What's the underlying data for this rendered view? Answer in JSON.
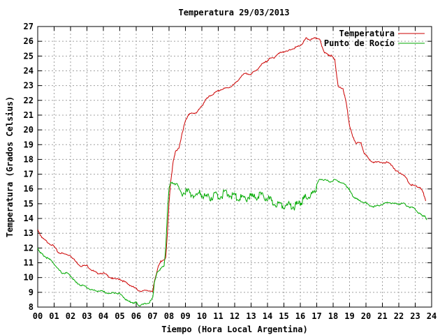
{
  "chart_data": {
    "type": "line",
    "title": "Temperatura 29/03/2013",
    "xlabel": "Tiempo (Hora Local Argentina)",
    "ylabel": "Temperatura (Grados Celsius)",
    "xlim": [
      0,
      24
    ],
    "ylim": [
      8,
      27
    ],
    "x_tick_labels": [
      "00",
      "01",
      "02",
      "03",
      "04",
      "05",
      "06",
      "07",
      "08",
      "09",
      "10",
      "11",
      "12",
      "13",
      "14",
      "15",
      "16",
      "17",
      "18",
      "19",
      "20",
      "21",
      "22",
      "23",
      "24"
    ],
    "y_tick_labels": [
      "8",
      "9",
      "10",
      "11",
      "12",
      "13",
      "14",
      "15",
      "16",
      "17",
      "18",
      "19",
      "20",
      "21",
      "22",
      "23",
      "24",
      "25",
      "26",
      "27"
    ],
    "grid": true,
    "legend_position": "top-right",
    "series": [
      {
        "name": "Temperatura",
        "color": "#cc0000",
        "points": [
          [
            0.0,
            13.2
          ],
          [
            0.15,
            12.9
          ],
          [
            0.35,
            12.6
          ],
          [
            0.6,
            12.4
          ],
          [
            1.0,
            12.1
          ],
          [
            1.25,
            11.7
          ],
          [
            1.6,
            11.6
          ],
          [
            2.0,
            11.5
          ],
          [
            2.3,
            11.1
          ],
          [
            2.6,
            10.8
          ],
          [
            3.0,
            10.8
          ],
          [
            3.3,
            10.5
          ],
          [
            3.6,
            10.3
          ],
          [
            4.0,
            10.3
          ],
          [
            4.3,
            10.1
          ],
          [
            4.6,
            9.9
          ],
          [
            5.0,
            9.9
          ],
          [
            5.3,
            9.7
          ],
          [
            5.6,
            9.5
          ],
          [
            5.9,
            9.3
          ],
          [
            6.2,
            9.1
          ],
          [
            6.6,
            9.1
          ],
          [
            7.0,
            9.1
          ],
          [
            7.15,
            9.9
          ],
          [
            7.3,
            10.6
          ],
          [
            7.5,
            11.1
          ],
          [
            7.8,
            11.3
          ],
          [
            7.9,
            13.0
          ],
          [
            8.0,
            15.0
          ],
          [
            8.1,
            16.5
          ],
          [
            8.25,
            17.8
          ],
          [
            8.4,
            18.6
          ],
          [
            8.6,
            18.7
          ],
          [
            8.8,
            19.8
          ],
          [
            9.0,
            20.6
          ],
          [
            9.2,
            21.1
          ],
          [
            9.5,
            21.1
          ],
          [
            9.7,
            21.2
          ],
          [
            10.0,
            21.6
          ],
          [
            10.2,
            22.0
          ],
          [
            10.5,
            22.3
          ],
          [
            10.8,
            22.5
          ],
          [
            11.1,
            22.7
          ],
          [
            11.4,
            22.8
          ],
          [
            11.7,
            22.9
          ],
          [
            12.0,
            23.1
          ],
          [
            12.3,
            23.5
          ],
          [
            12.6,
            23.8
          ],
          [
            13.0,
            23.8
          ],
          [
            13.3,
            24.0
          ],
          [
            13.6,
            24.4
          ],
          [
            13.9,
            24.6
          ],
          [
            14.1,
            24.8
          ],
          [
            14.4,
            24.9
          ],
          [
            14.6,
            25.1
          ],
          [
            14.9,
            25.3
          ],
          [
            15.2,
            25.3
          ],
          [
            15.5,
            25.5
          ],
          [
            15.8,
            25.6
          ],
          [
            16.1,
            25.8
          ],
          [
            16.35,
            26.2
          ],
          [
            16.6,
            26.1
          ],
          [
            16.9,
            26.2
          ],
          [
            17.15,
            26.2
          ],
          [
            17.3,
            25.7
          ],
          [
            17.5,
            25.2
          ],
          [
            17.7,
            25.1
          ],
          [
            17.9,
            25.0
          ],
          [
            18.1,
            24.8
          ],
          [
            18.3,
            22.9
          ],
          [
            18.6,
            22.8
          ],
          [
            18.8,
            21.8
          ],
          [
            19.0,
            20.3
          ],
          [
            19.2,
            19.5
          ],
          [
            19.4,
            19.1
          ],
          [
            19.7,
            19.1
          ],
          [
            19.9,
            18.4
          ],
          [
            20.2,
            18.0
          ],
          [
            20.5,
            17.8
          ],
          [
            20.9,
            17.8
          ],
          [
            21.3,
            17.8
          ],
          [
            21.6,
            17.6
          ],
          [
            21.8,
            17.2
          ],
          [
            22.1,
            17.1
          ],
          [
            22.4,
            16.8
          ],
          [
            22.7,
            16.3
          ],
          [
            23.0,
            16.2
          ],
          [
            23.3,
            16.1
          ],
          [
            23.5,
            15.7
          ],
          [
            23.65,
            15.2
          ]
        ]
      },
      {
        "name": "Punto de Rocío",
        "color": "#00aa00",
        "points": [
          [
            0.0,
            12.0
          ],
          [
            0.15,
            11.7
          ],
          [
            0.35,
            11.5
          ],
          [
            0.6,
            11.3
          ],
          [
            0.9,
            11.1
          ],
          [
            1.2,
            10.6
          ],
          [
            1.5,
            10.3
          ],
          [
            1.8,
            10.3
          ],
          [
            2.1,
            10.0
          ],
          [
            2.3,
            9.7
          ],
          [
            2.6,
            9.5
          ],
          [
            2.9,
            9.4
          ],
          [
            3.2,
            9.2
          ],
          [
            3.5,
            9.1
          ],
          [
            3.8,
            9.1
          ],
          [
            4.1,
            9.0
          ],
          [
            4.4,
            8.9
          ],
          [
            4.7,
            9.0
          ],
          [
            5.0,
            8.9
          ],
          [
            5.3,
            8.6
          ],
          [
            5.5,
            8.4
          ],
          [
            5.8,
            8.3
          ],
          [
            6.0,
            8.3
          ],
          [
            6.2,
            8.1
          ],
          [
            6.5,
            8.2
          ],
          [
            6.8,
            8.3
          ],
          [
            7.0,
            8.6
          ],
          [
            7.1,
            9.6
          ],
          [
            7.3,
            10.4
          ],
          [
            7.5,
            10.6
          ],
          [
            7.7,
            10.8
          ],
          [
            7.8,
            12.0
          ],
          [
            7.9,
            14.5
          ],
          [
            8.0,
            16.0
          ],
          [
            8.1,
            16.5
          ],
          [
            8.3,
            16.3
          ],
          [
            8.5,
            16.4
          ],
          [
            8.7,
            15.7
          ],
          [
            9.0,
            15.8
          ],
          [
            9.3,
            15.7
          ],
          [
            9.6,
            15.5
          ],
          [
            9.9,
            15.7
          ],
          [
            10.2,
            15.5
          ],
          [
            10.5,
            15.4
          ],
          [
            10.8,
            15.6
          ],
          [
            11.1,
            15.5
          ],
          [
            11.4,
            15.7
          ],
          [
            11.7,
            15.6
          ],
          [
            12.0,
            15.5
          ],
          [
            12.3,
            15.4
          ],
          [
            12.6,
            15.3
          ],
          [
            12.9,
            15.5
          ],
          [
            13.2,
            15.4
          ],
          [
            13.5,
            15.6
          ],
          [
            13.8,
            15.4
          ],
          [
            14.1,
            15.3
          ],
          [
            14.4,
            15.0
          ],
          [
            14.7,
            15.0
          ],
          [
            15.0,
            14.9
          ],
          [
            15.3,
            14.9
          ],
          [
            15.6,
            14.8
          ],
          [
            15.9,
            15.0
          ],
          [
            16.1,
            15.2
          ],
          [
            16.3,
            15.4
          ],
          [
            16.6,
            15.5
          ],
          [
            16.9,
            15.7
          ],
          [
            17.0,
            16.3
          ],
          [
            17.2,
            16.7
          ],
          [
            17.5,
            16.6
          ],
          [
            17.8,
            16.5
          ],
          [
            18.1,
            16.6
          ],
          [
            18.4,
            16.5
          ],
          [
            18.7,
            16.3
          ],
          [
            18.9,
            16.1
          ],
          [
            19.1,
            15.7
          ],
          [
            19.3,
            15.4
          ],
          [
            19.6,
            15.2
          ],
          [
            19.9,
            15.1
          ],
          [
            20.2,
            14.9
          ],
          [
            20.5,
            14.8
          ],
          [
            20.8,
            14.9
          ],
          [
            21.1,
            15.0
          ],
          [
            21.4,
            15.1
          ],
          [
            21.7,
            15.0
          ],
          [
            22.0,
            15.0
          ],
          [
            22.3,
            15.0
          ],
          [
            22.6,
            14.8
          ],
          [
            22.9,
            14.7
          ],
          [
            23.2,
            14.4
          ],
          [
            23.4,
            14.2
          ],
          [
            23.55,
            14.2
          ],
          [
            23.7,
            13.9
          ]
        ]
      }
    ]
  }
}
